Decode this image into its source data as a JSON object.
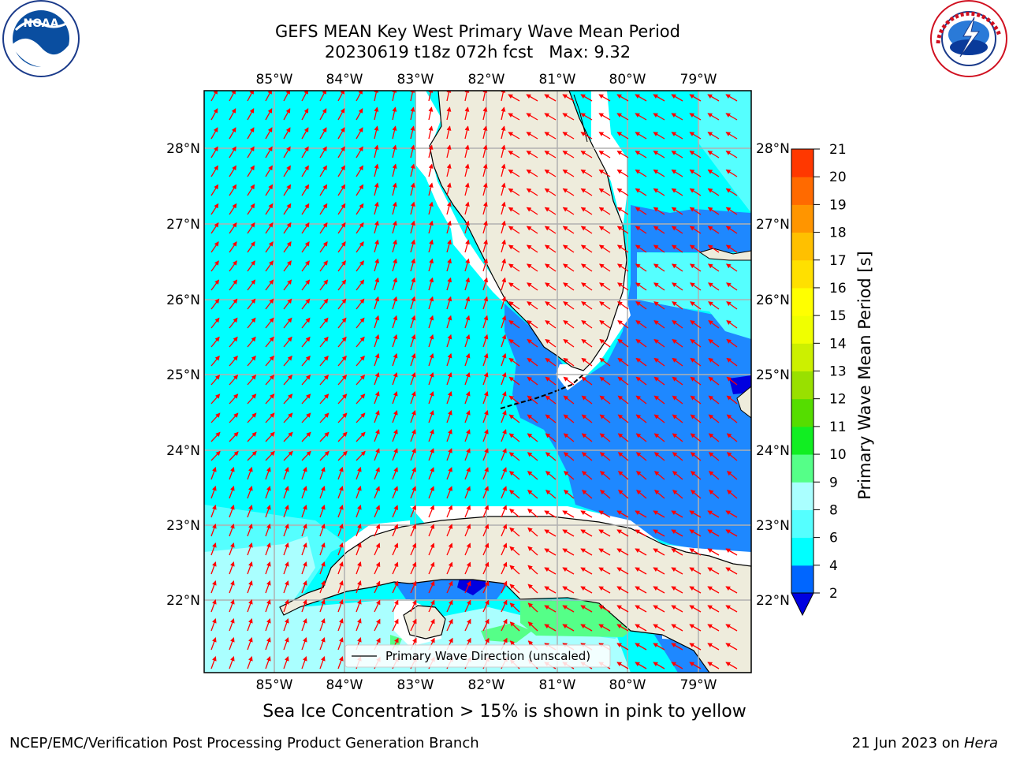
{
  "header": {
    "title_line1": "GEFS MEAN Key West Primary Wave Mean Period",
    "title_line2": "20230619 t18z 072h fcst   Max: 9.32"
  },
  "logos": {
    "noaa_text": "NOAA",
    "noaa_ring_text": "NATIONAL OCEANIC AND ATMOSPHERIC ADMINISTRATION · U.S. DEPARTMENT OF COMMERCE",
    "nws_ring_text": "NATIONAL WEATHER SERVICE"
  },
  "map": {
    "lon_labels": [
      "85°W",
      "84°W",
      "83°W",
      "82°W",
      "81°W",
      "80°W",
      "79°W"
    ],
    "lat_labels": [
      "28°N",
      "27°N",
      "26°N",
      "25°N",
      "24°N",
      "23°N",
      "22°N"
    ],
    "legend_label": "Primary Wave Direction (unscaled)",
    "colors": {
      "land": "#eeecdc",
      "period_2_4": "#1e88ff",
      "period_4_6": "#00ffff",
      "period_6_8": "#55ffff",
      "period_8_9": "#aaffff",
      "period_9_10": "#55ff88",
      "arrow": "#ff0000"
    }
  },
  "colorbar": {
    "label": "Primary Wave Mean Period [s]",
    "ticks": [
      "2",
      "4",
      "6",
      "8",
      "9",
      "10",
      "11",
      "12",
      "13",
      "14",
      "15",
      "16",
      "17",
      "18",
      "19",
      "20",
      "21"
    ],
    "colors": [
      "#0066ff",
      "#00ffff",
      "#55ffff",
      "#aaffff",
      "#55ff88",
      "#11ee22",
      "#55dd00",
      "#99e000",
      "#ccf000",
      "#f0ff00",
      "#ffff00",
      "#ffe000",
      "#ffc000",
      "#ff9500",
      "#ff6a00",
      "#ff3800",
      "#ff0000"
    ],
    "extend_color": "#0000e0"
  },
  "ice_note": "Sea Ice Concentration > 15% is shown in pink to yellow",
  "footer": {
    "left": "NCEP/EMC/Verification Post Processing Product Generation Branch",
    "right_date": "21 Jun 2023 on ",
    "right_host": "Hera"
  }
}
